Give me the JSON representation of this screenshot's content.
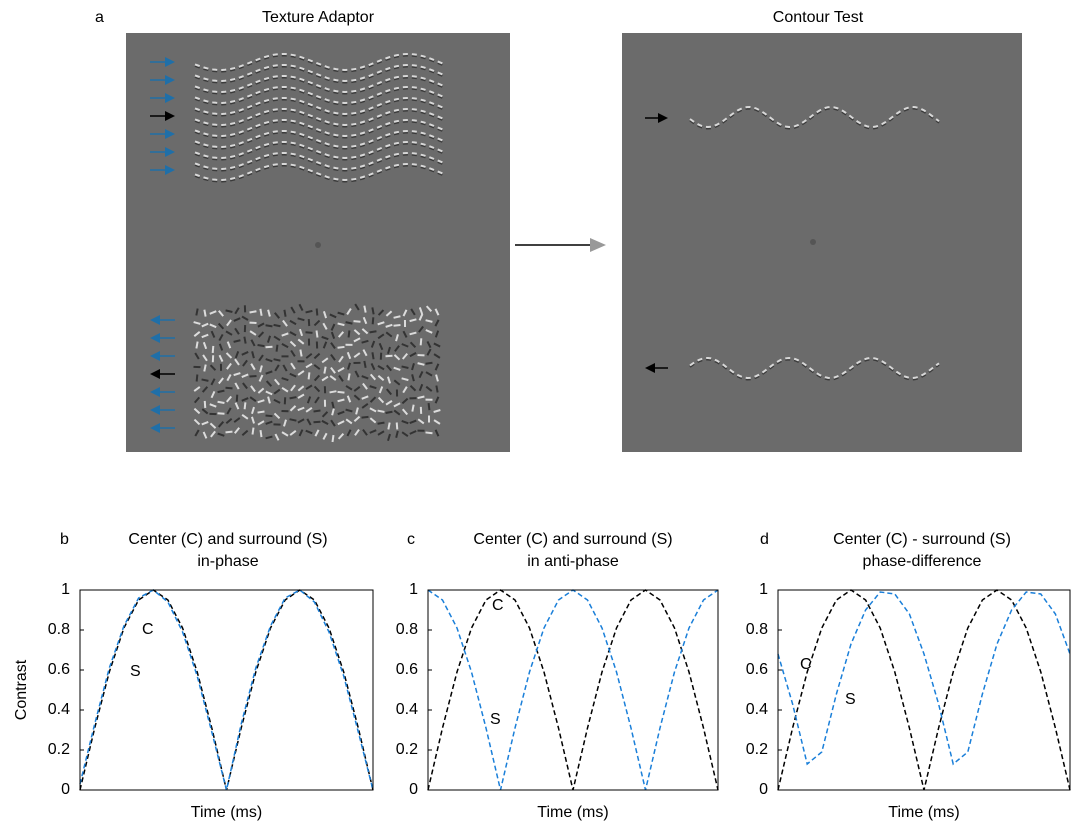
{
  "figure": {
    "label": "a",
    "left_title": "Texture Adaptor",
    "right_title": "Contour Test"
  },
  "chart_data": [
    {
      "type": "line",
      "panel_label": "b",
      "title": [
        "Center (C) and surround (S)",
        "in-phase"
      ],
      "x_label": "Time (ms)",
      "y_label": "Contrast",
      "x": [
        0,
        0.05,
        0.1,
        0.15,
        0.2,
        0.25,
        0.3,
        0.35,
        0.4,
        0.45,
        0.5,
        0.55,
        0.6,
        0.65,
        0.7,
        0.75,
        0.8,
        0.85,
        0.9,
        0.95,
        1
      ],
      "xlim": [
        0,
        1
      ],
      "ylim": [
        0,
        1
      ],
      "yticks": [
        0,
        0.2,
        0.4,
        0.6,
        0.8,
        1
      ],
      "series": [
        {
          "name": "C",
          "color": "#000000",
          "values": [
            0,
            0.31,
            0.59,
            0.81,
            0.95,
            1,
            0.95,
            0.81,
            0.59,
            0.31,
            0,
            0.31,
            0.59,
            0.81,
            0.95,
            1,
            0.95,
            0.81,
            0.59,
            0.31,
            0
          ]
        },
        {
          "name": "S",
          "color": "#1a7fd9",
          "values": [
            0.03,
            0.33,
            0.61,
            0.82,
            0.96,
            1,
            0.94,
            0.79,
            0.57,
            0.29,
            0,
            0.33,
            0.61,
            0.82,
            0.96,
            1,
            0.94,
            0.79,
            0.57,
            0.29,
            0
          ]
        }
      ]
    },
    {
      "type": "line",
      "panel_label": "c",
      "title": [
        "Center (C) and surround (S)",
        "in anti-phase"
      ],
      "x_label": "Time (ms)",
      "x": [
        0,
        0.05,
        0.1,
        0.15,
        0.2,
        0.25,
        0.3,
        0.35,
        0.4,
        0.45,
        0.5,
        0.55,
        0.6,
        0.65,
        0.7,
        0.75,
        0.8,
        0.85,
        0.9,
        0.95,
        1
      ],
      "xlim": [
        0,
        1
      ],
      "ylim": [
        0,
        1
      ],
      "yticks": [
        0,
        0.2,
        0.4,
        0.6,
        0.8,
        1
      ],
      "series": [
        {
          "name": "C",
          "color": "#000000",
          "values": [
            0,
            0.31,
            0.59,
            0.81,
            0.95,
            1,
            0.95,
            0.81,
            0.59,
            0.31,
            0,
            0.31,
            0.59,
            0.81,
            0.95,
            1,
            0.95,
            0.81,
            0.59,
            0.31,
            0
          ]
        },
        {
          "name": "S",
          "color": "#1a7fd9",
          "values": [
            1,
            0.95,
            0.81,
            0.59,
            0.31,
            0,
            0.31,
            0.59,
            0.81,
            0.95,
            1,
            0.95,
            0.81,
            0.59,
            0.31,
            0,
            0.31,
            0.59,
            0.81,
            0.95,
            1
          ]
        }
      ]
    },
    {
      "type": "line",
      "panel_label": "d",
      "title": [
        "Center (C) - surround (S)",
        "phase-difference"
      ],
      "x_label": "Time (ms)",
      "x": [
        0,
        0.05,
        0.1,
        0.15,
        0.2,
        0.25,
        0.3,
        0.35,
        0.4,
        0.45,
        0.5,
        0.55,
        0.6,
        0.65,
        0.7,
        0.75,
        0.8,
        0.85,
        0.9,
        0.95,
        1
      ],
      "xlim": [
        0,
        1
      ],
      "ylim": [
        0,
        1
      ],
      "yticks": [
        0,
        0.2,
        0.4,
        0.6,
        0.8,
        1
      ],
      "series": [
        {
          "name": "C",
          "color": "#000000",
          "values": [
            0,
            0.31,
            0.59,
            0.81,
            0.95,
            1,
            0.95,
            0.81,
            0.59,
            0.31,
            0,
            0.31,
            0.59,
            0.81,
            0.95,
            1,
            0.95,
            0.81,
            0.59,
            0.31,
            0
          ]
        },
        {
          "name": "S",
          "color": "#1a7fd9",
          "values": [
            0.68,
            0.43,
            0.13,
            0.19,
            0.48,
            0.73,
            0.9,
            0.99,
            0.98,
            0.88,
            0.68,
            0.43,
            0.13,
            0.19,
            0.48,
            0.73,
            0.9,
            0.99,
            0.98,
            0.88,
            0.68
          ]
        }
      ]
    }
  ]
}
